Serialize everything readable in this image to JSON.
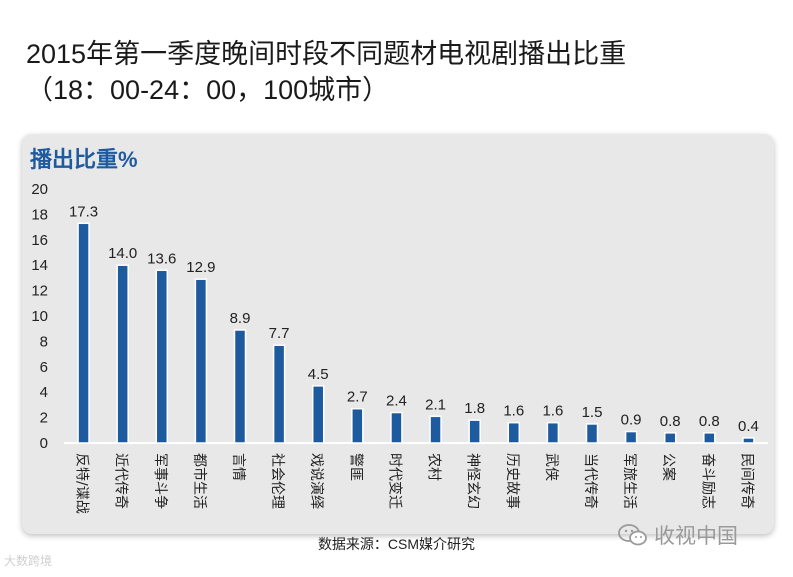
{
  "title": {
    "line1": "2015年第一季度晚间时段不同题材电视剧播出比重",
    "line2": "（18：00-24：00，100城市）"
  },
  "colors": {
    "bar": "#1e5a9e",
    "bar_edge": "#ffffff",
    "panel_bg": "#e8e8e8",
    "title_accent": "#1e5a9e"
  },
  "footer": {
    "source": "数据来源：CSM媒介研究",
    "watermark_left": "大数跨境",
    "watermark_right": "收视中国"
  },
  "chart_data": {
    "type": "bar",
    "ylabel": "播出比重%",
    "ylim": [
      0,
      20
    ],
    "yticks": [
      0,
      2,
      4,
      6,
      8,
      10,
      12,
      14,
      16,
      18,
      20
    ],
    "categories": [
      "反特/谍战",
      "近代传奇",
      "军事斗争",
      "都市生活",
      "言情",
      "社会伦理",
      "戏说演绎",
      "警匪",
      "时代变迁",
      "农村",
      "神怪玄幻",
      "历史故事",
      "武侠",
      "当代传奇",
      "军旅生活",
      "公案",
      "奋斗励志",
      "民间传奇"
    ],
    "values": [
      17.3,
      14.0,
      13.6,
      12.9,
      8.9,
      7.7,
      4.5,
      2.7,
      2.4,
      2.1,
      1.8,
      1.6,
      1.6,
      1.5,
      0.9,
      0.8,
      0.8,
      0.4
    ],
    "labels": [
      "17.3",
      "14.0",
      "13.6",
      "12.9",
      "8.9",
      "7.7",
      "4.5",
      "2.7",
      "2.4",
      "2.1",
      "1.8",
      "1.6",
      "1.6",
      "1.5",
      "0.9",
      "0.8",
      "0.8",
      "0.4"
    ],
    "grid": false,
    "legend": "none"
  }
}
